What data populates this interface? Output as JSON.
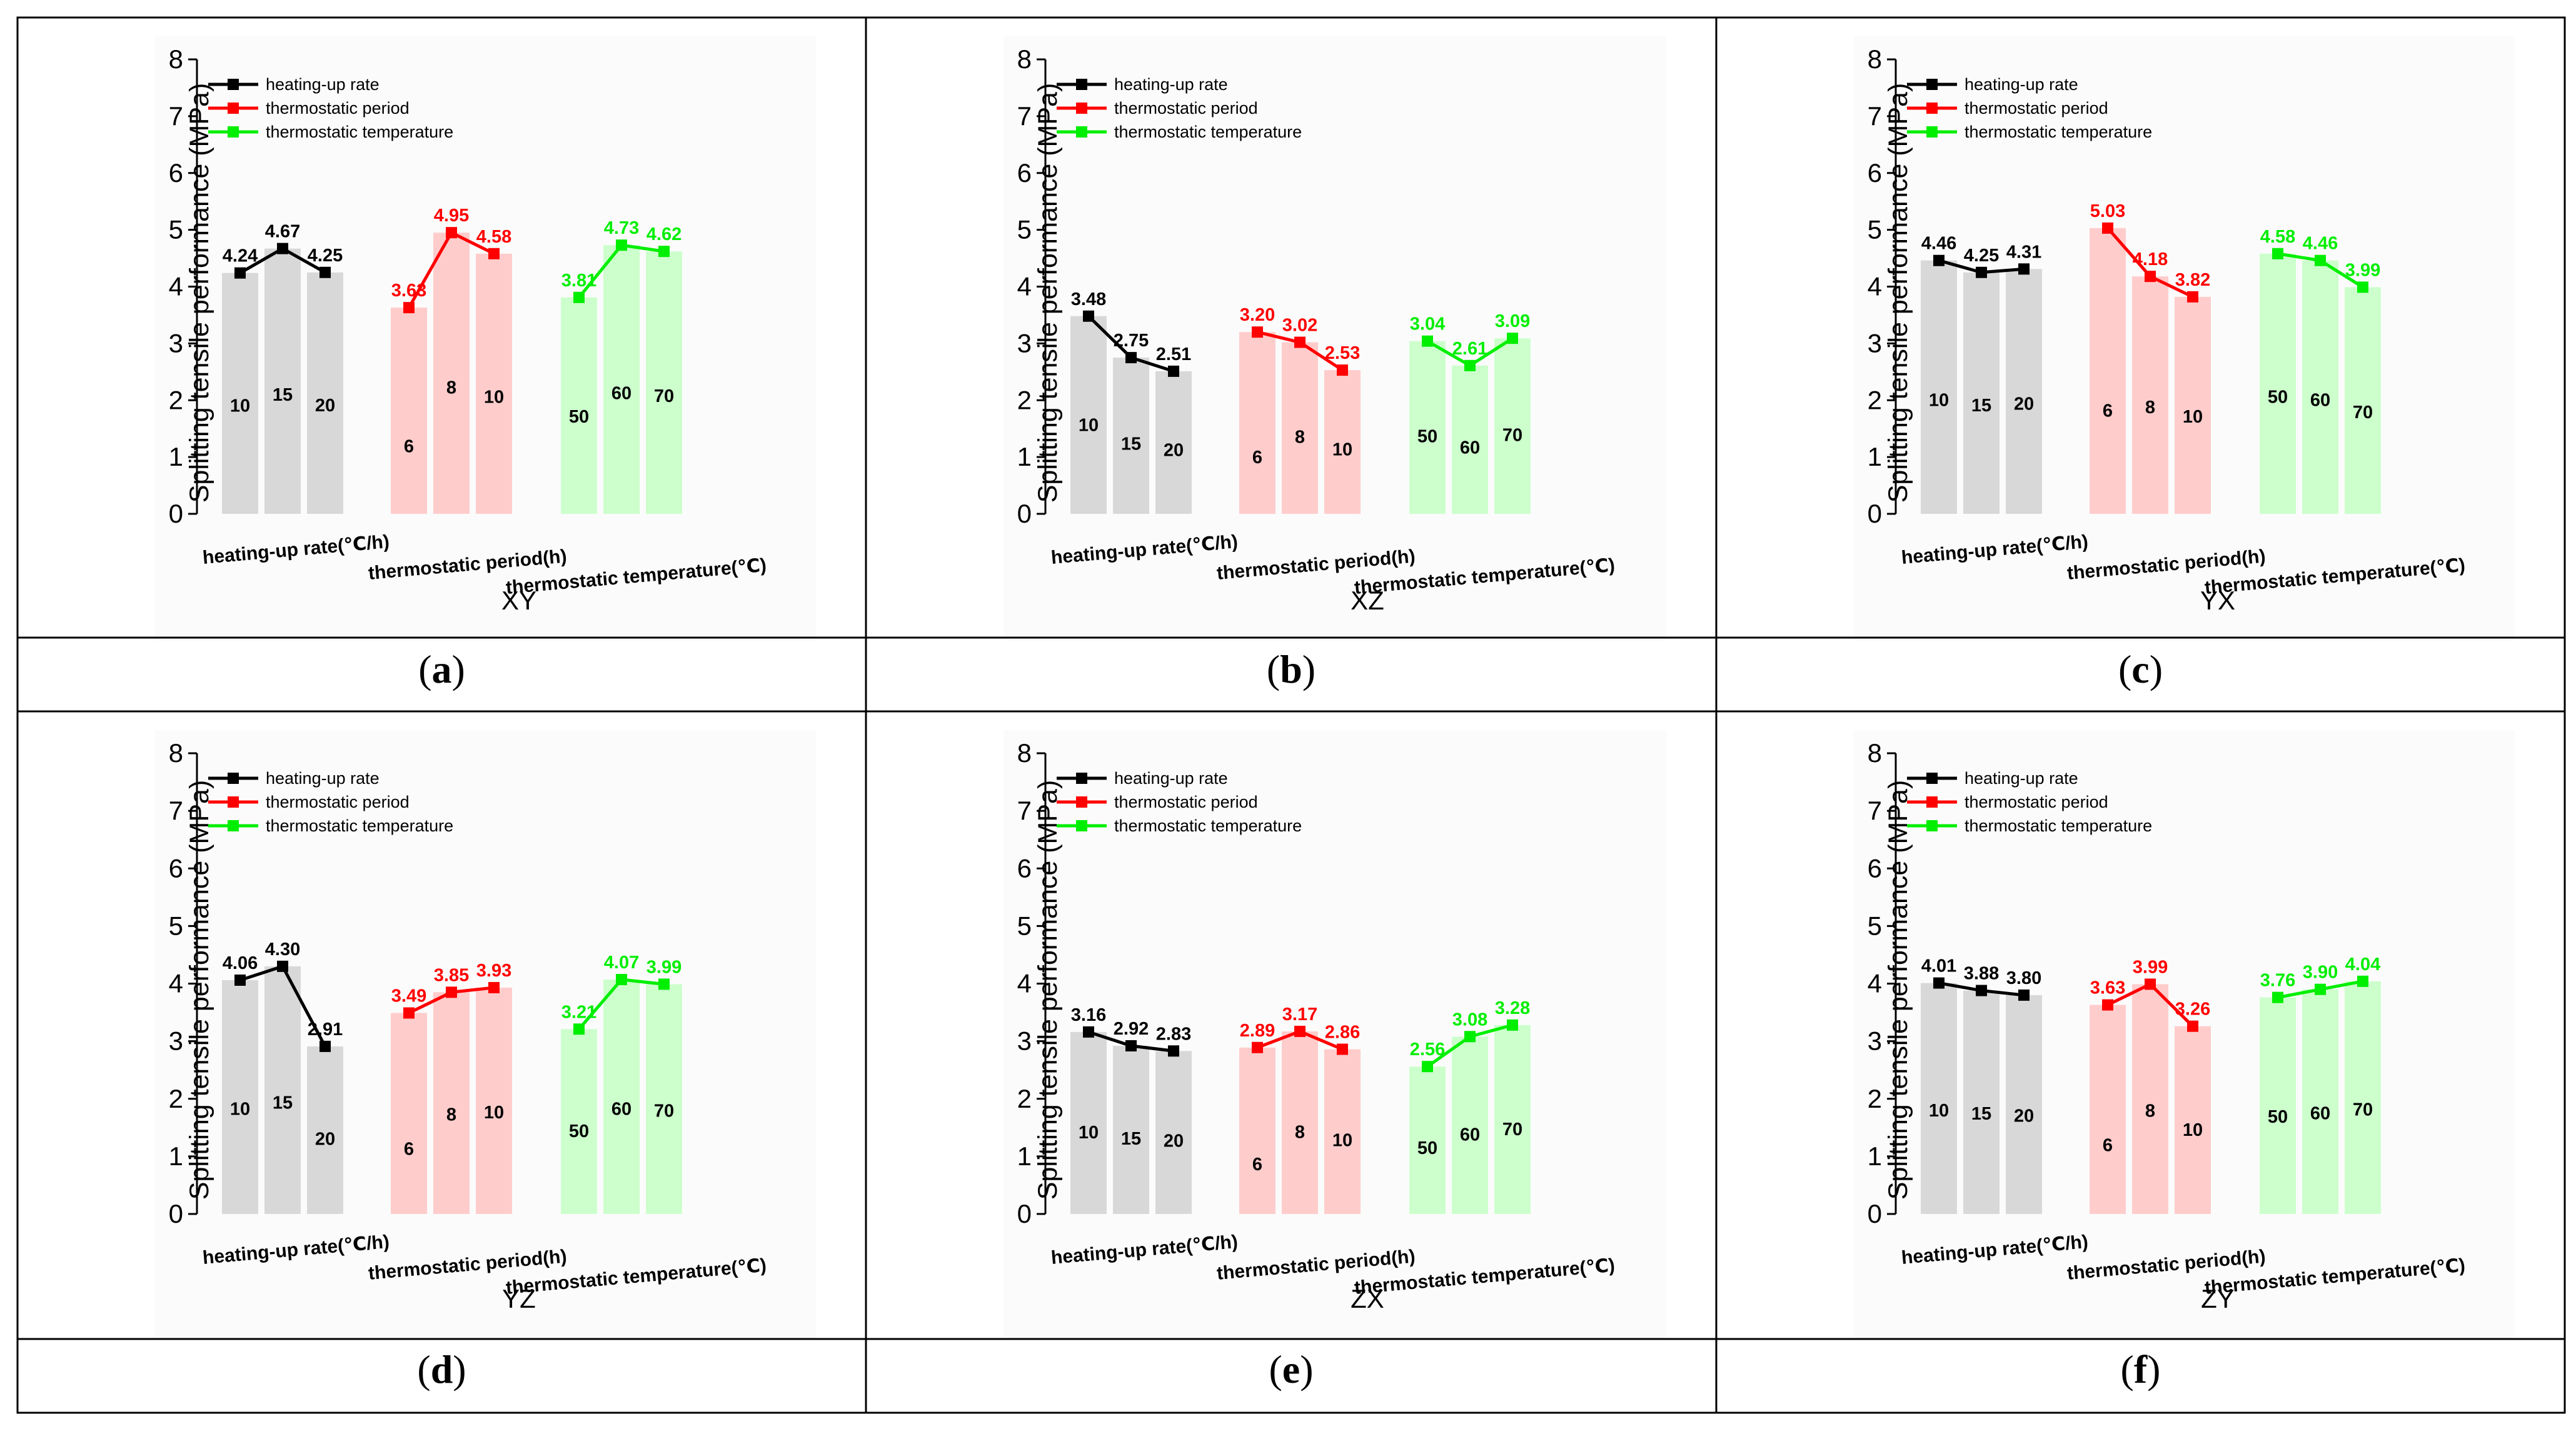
{
  "chart_data": [
    {
      "type": "bar+line",
      "panel": "(a)",
      "panel_letter": "a",
      "subtitle": "XY",
      "ylabel": "Splitting tensile performance (MPa)",
      "ylim": [
        0,
        8
      ],
      "yticks": [
        "0",
        "1",
        "2",
        "3",
        "4",
        "5",
        "6",
        "7",
        "8"
      ],
      "legend": [
        "heating-up rate",
        "thermostatic period",
        "thermostatic temperature"
      ],
      "legend_position": "top-left",
      "group_labels": [
        "heating-up rate(℃/h)",
        "thermostatic period(h)",
        "thermostatic temperature(℃)"
      ],
      "series": [
        {
          "name": "heating-up rate",
          "categories": [
            "10",
            "15",
            "20"
          ],
          "values": [
            4.24,
            4.67,
            4.25
          ],
          "labels": [
            "4.24",
            "4.67",
            "4.25"
          ]
        },
        {
          "name": "thermostatic period",
          "categories": [
            "6",
            "8",
            "10"
          ],
          "values": [
            3.63,
            4.95,
            4.58
          ],
          "labels": [
            "3.63",
            "4.95",
            "4.58"
          ]
        },
        {
          "name": "thermostatic temperature",
          "categories": [
            "50",
            "60",
            "70"
          ],
          "values": [
            3.81,
            4.73,
            4.62
          ],
          "labels": [
            "3.81",
            "4.73",
            "4.62"
          ]
        }
      ]
    },
    {
      "type": "bar+line",
      "panel": "(b)",
      "panel_letter": "b",
      "subtitle": "XZ",
      "ylabel": "Splitting tensile performance (MPa)",
      "ylim": [
        0,
        8
      ],
      "yticks": [
        "0",
        "1",
        "2",
        "3",
        "4",
        "5",
        "6",
        "7",
        "8"
      ],
      "legend": [
        "heating-up rate",
        "thermostatic period",
        "thermostatic temperature"
      ],
      "legend_position": "top-left",
      "group_labels": [
        "heating-up rate(℃/h)",
        "thermostatic period(h)",
        "thermostatic temperature(℃)"
      ],
      "series": [
        {
          "name": "heating-up rate",
          "categories": [
            "10",
            "15",
            "20"
          ],
          "values": [
            3.48,
            2.75,
            2.51
          ],
          "labels": [
            "3.48",
            "2.75",
            "2.51"
          ]
        },
        {
          "name": "thermostatic period",
          "categories": [
            "6",
            "8",
            "10"
          ],
          "values": [
            3.2,
            3.02,
            2.53
          ],
          "labels": [
            "3.20",
            "3.02",
            "2.53"
          ]
        },
        {
          "name": "thermostatic temperature",
          "categories": [
            "50",
            "60",
            "70"
          ],
          "values": [
            3.04,
            2.61,
            3.09
          ],
          "labels": [
            "3.04",
            "2.61",
            "3.09"
          ]
        }
      ]
    },
    {
      "type": "bar+line",
      "panel": "(c)",
      "panel_letter": "c",
      "subtitle": "YX",
      "ylabel": "Splitting tensile performance (MPa)",
      "ylim": [
        0,
        8
      ],
      "yticks": [
        "0",
        "1",
        "2",
        "3",
        "4",
        "5",
        "6",
        "7",
        "8"
      ],
      "legend": [
        "heating-up rate",
        "thermostatic period",
        "thermostatic temperature"
      ],
      "legend_position": "top-left",
      "group_labels": [
        "heating-up rate(℃/h)",
        "thermostatic period(h)",
        "thermostatic temperature(℃)"
      ],
      "series": [
        {
          "name": "heating-up rate",
          "categories": [
            "10",
            "15",
            "20"
          ],
          "values": [
            4.46,
            4.25,
            4.31
          ],
          "labels": [
            "4.46",
            "4.25",
            "4.31"
          ]
        },
        {
          "name": "thermostatic period",
          "categories": [
            "6",
            "8",
            "10"
          ],
          "values": [
            5.03,
            4.18,
            3.82
          ],
          "labels": [
            "5.03",
            "4.18",
            "3.82"
          ]
        },
        {
          "name": "thermostatic temperature",
          "categories": [
            "50",
            "60",
            "70"
          ],
          "values": [
            4.58,
            4.46,
            3.99
          ],
          "labels": [
            "4.58",
            "4.46",
            "3.99"
          ]
        }
      ]
    },
    {
      "type": "bar+line",
      "panel": "(d)",
      "panel_letter": "d",
      "subtitle": "YZ",
      "ylabel": "Splitting tensile performance (MPa)",
      "ylim": [
        0,
        8
      ],
      "yticks": [
        "0",
        "1",
        "2",
        "3",
        "4",
        "5",
        "6",
        "7",
        "8"
      ],
      "legend": [
        "heating-up rate",
        "thermostatic period",
        "thermostatic temperature"
      ],
      "legend_position": "top-left",
      "group_labels": [
        "heating-up rate(℃/h)",
        "thermostatic period(h)",
        "thermostatic temperature(℃)"
      ],
      "series": [
        {
          "name": "heating-up rate",
          "categories": [
            "10",
            "15",
            "20"
          ],
          "values": [
            4.06,
            4.3,
            2.91
          ],
          "labels": [
            "4.06",
            "4.30",
            "2.91"
          ]
        },
        {
          "name": "thermostatic period",
          "categories": [
            "6",
            "8",
            "10"
          ],
          "values": [
            3.49,
            3.85,
            3.93
          ],
          "labels": [
            "3.49",
            "3.85",
            "3.93"
          ]
        },
        {
          "name": "thermostatic temperature",
          "categories": [
            "50",
            "60",
            "70"
          ],
          "values": [
            3.21,
            4.07,
            3.99
          ],
          "labels": [
            "3.21",
            "4.07",
            "3.99"
          ]
        }
      ]
    },
    {
      "type": "bar+line",
      "panel": "(e)",
      "panel_letter": "e",
      "subtitle": "ZX",
      "ylabel": "Splitting tensile performance (MPa)",
      "ylim": [
        0,
        8
      ],
      "yticks": [
        "0",
        "1",
        "2",
        "3",
        "4",
        "5",
        "6",
        "7",
        "8"
      ],
      "legend": [
        "heating-up rate",
        "thermostatic period",
        "thermostatic temperature"
      ],
      "legend_position": "top-left",
      "group_labels": [
        "heating-up rate(℃/h)",
        "thermostatic period(h)",
        "thermostatic temperature(℃)"
      ],
      "series": [
        {
          "name": "heating-up rate",
          "categories": [
            "10",
            "15",
            "20"
          ],
          "values": [
            3.16,
            2.92,
            2.83
          ],
          "labels": [
            "3.16",
            "2.92",
            "2.83"
          ]
        },
        {
          "name": "thermostatic period",
          "categories": [
            "6",
            "8",
            "10"
          ],
          "values": [
            2.89,
            3.17,
            2.86
          ],
          "labels": [
            "2.89",
            "3.17",
            "2.86"
          ]
        },
        {
          "name": "thermostatic temperature",
          "categories": [
            "50",
            "60",
            "70"
          ],
          "values": [
            2.56,
            3.08,
            3.28
          ],
          "labels": [
            "2.56",
            "3.08",
            "3.28"
          ]
        }
      ]
    },
    {
      "type": "bar+line",
      "panel": "(f)",
      "panel_letter": "f",
      "subtitle": "ZY",
      "ylabel": "Splitting tensile performance (MPa)",
      "ylim": [
        0,
        8
      ],
      "yticks": [
        "0",
        "1",
        "2",
        "3",
        "4",
        "5",
        "6",
        "7",
        "8"
      ],
      "legend": [
        "heating-up rate",
        "thermostatic period",
        "thermostatic temperature"
      ],
      "legend_position": "top-left",
      "group_labels": [
        "heating-up rate(℃/h)",
        "thermostatic period(h)",
        "thermostatic temperature(℃)"
      ],
      "series": [
        {
          "name": "heating-up rate",
          "categories": [
            "10",
            "15",
            "20"
          ],
          "values": [
            4.01,
            3.88,
            3.8
          ],
          "labels": [
            "4.01",
            "3.88",
            "3.80"
          ]
        },
        {
          "name": "thermostatic period",
          "categories": [
            "6",
            "8",
            "10"
          ],
          "values": [
            3.63,
            3.99,
            3.26
          ],
          "labels": [
            "3.63",
            "3.99",
            "3.26"
          ]
        },
        {
          "name": "thermostatic temperature",
          "categories": [
            "50",
            "60",
            "70"
          ],
          "values": [
            3.76,
            3.9,
            4.04
          ],
          "labels": [
            "3.76",
            "3.90",
            "4.04"
          ]
        }
      ]
    }
  ],
  "colors": {
    "series_line": [
      "#000000",
      "#ff0000",
      "#00ee00"
    ],
    "series_bar": [
      "#d8d8d8",
      "#ffcccc",
      "#ccffcc"
    ],
    "plot_background": "#fbfbfb",
    "grid_border": "#000000"
  }
}
